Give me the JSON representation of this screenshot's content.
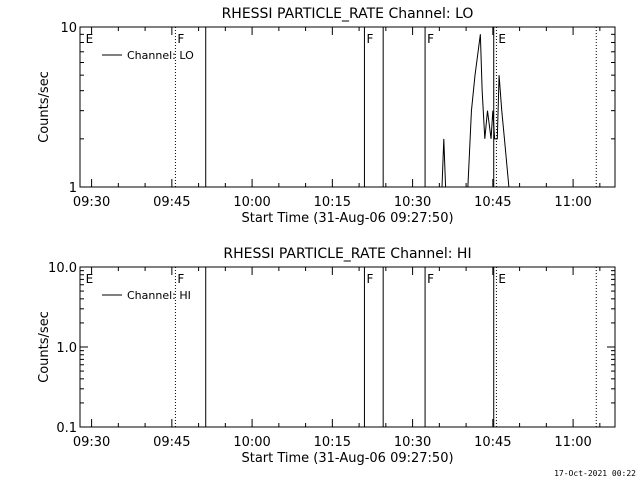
{
  "footer_timestamp": "17-Oct-2021 00:22",
  "chart_data": [
    {
      "type": "line",
      "title": "RHESSI PARTICLE_RATE Channel: LO",
      "xlabel": "Start Time (31-Aug-06 09:27:50)",
      "ylabel": "Counts/sec",
      "legend": {
        "label": "Channel: LO",
        "position": "top-left"
      },
      "x_ticks": [
        "09:30",
        "09:45",
        "10:00",
        "10:15",
        "10:30",
        "10:45",
        "11:00"
      ],
      "y_scale": "log",
      "ylim": [
        1,
        10
      ],
      "y_ticks": [
        "1",
        "10"
      ],
      "xlim": [
        "09:27:50",
        "11:07:50"
      ],
      "markers": [
        {
          "time": "09:28:30",
          "label": "E",
          "style": "none"
        },
        {
          "time": "09:45:40",
          "label": "F",
          "style": "dotted"
        },
        {
          "time": "09:51:20",
          "label": "",
          "style": "solid"
        },
        {
          "time": "10:21:00",
          "label": "F",
          "style": "solid"
        },
        {
          "time": "10:24:30",
          "label": "",
          "style": "solid"
        },
        {
          "time": "10:32:20",
          "label": "F",
          "style": "solid"
        },
        {
          "time": "10:45:10",
          "label": "",
          "style": "solid"
        },
        {
          "time": "10:45:40",
          "label": "E",
          "style": "dotted"
        },
        {
          "time": "11:04:20",
          "label": "",
          "style": "dotted"
        }
      ],
      "series": [
        {
          "points": [
            [
              "10:35:30",
              1
            ],
            [
              "10:35:50",
              2
            ],
            [
              "10:36:10",
              1
            ],
            [
              "10:40:20",
              1
            ],
            [
              "10:41:00",
              3
            ],
            [
              "10:41:40",
              5
            ],
            [
              "10:42:40",
              9
            ],
            [
              "10:43:00",
              4
            ],
            [
              "10:43:30",
              2
            ],
            [
              "10:44:00",
              3
            ],
            [
              "10:44:40",
              2
            ],
            [
              "10:45:00",
              3
            ],
            [
              "10:45:20",
              2
            ],
            [
              "10:45:50",
              2
            ],
            [
              "10:46:10",
              5
            ],
            [
              "10:46:40",
              3
            ],
            [
              "10:47:10",
              2
            ],
            [
              "10:48:00",
              1
            ]
          ]
        }
      ]
    },
    {
      "type": "line",
      "title": "RHESSI PARTICLE_RATE Channel: HI",
      "xlabel": "Start Time (31-Aug-06 09:27:50)",
      "ylabel": "Counts/sec",
      "legend": {
        "label": "Channel: HI",
        "position": "top-left"
      },
      "x_ticks": [
        "09:30",
        "09:45",
        "10:00",
        "10:15",
        "10:30",
        "10:45",
        "11:00"
      ],
      "y_scale": "log",
      "ylim": [
        0.1,
        10
      ],
      "y_ticks": [
        "0.1",
        "1.0",
        "10.0"
      ],
      "xlim": [
        "09:27:50",
        "11:07:50"
      ],
      "markers": [
        {
          "time": "09:28:30",
          "label": "E",
          "style": "none"
        },
        {
          "time": "09:45:40",
          "label": "F",
          "style": "dotted"
        },
        {
          "time": "09:51:20",
          "label": "",
          "style": "solid"
        },
        {
          "time": "10:21:00",
          "label": "F",
          "style": "solid"
        },
        {
          "time": "10:24:30",
          "label": "",
          "style": "solid"
        },
        {
          "time": "10:32:20",
          "label": "F",
          "style": "solid"
        },
        {
          "time": "10:45:10",
          "label": "",
          "style": "solid"
        },
        {
          "time": "10:45:40",
          "label": "E",
          "style": "dotted"
        },
        {
          "time": "11:04:20",
          "label": "",
          "style": "dotted"
        }
      ],
      "series": [
        {
          "points": []
        }
      ]
    }
  ]
}
